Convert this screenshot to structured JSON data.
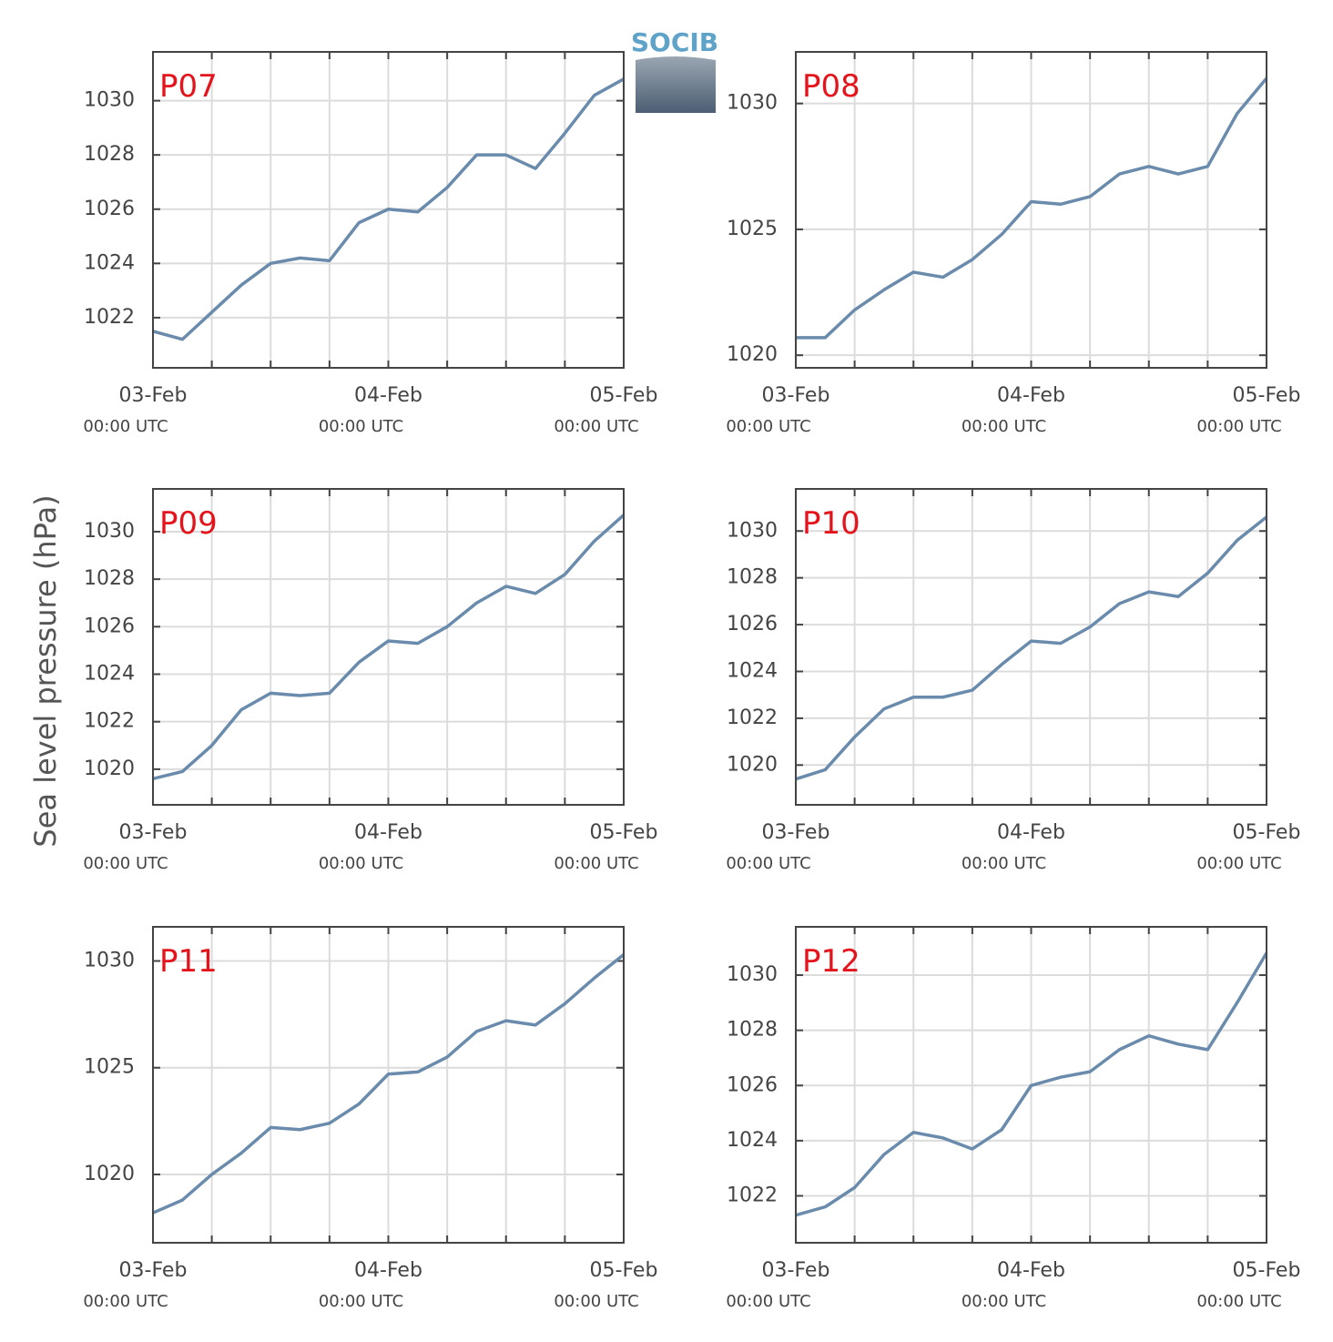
{
  "ylabel": "Sea level pressure (hPa)",
  "logo": "SOCIB",
  "chart_data": [
    {
      "type": "line",
      "title": "P07",
      "color": "#6a8bab",
      "grid": true,
      "x": [
        0,
        3,
        6,
        9,
        12,
        15,
        18,
        21,
        24,
        27,
        30,
        33,
        36,
        39,
        42,
        45,
        48
      ],
      "values": [
        1021.5,
        1021.2,
        1022.2,
        1023.2,
        1024.0,
        1024.2,
        1024.1,
        1025.5,
        1026.0,
        1025.9,
        1026.8,
        1028.0,
        1028.0,
        1027.5,
        1028.8,
        1030.2,
        1030.8
      ],
      "xlim": [
        0,
        48
      ],
      "xticks": [
        {
          "value": 0,
          "label": "03-Feb",
          "sublabel": "00:00 UTC"
        },
        {
          "value": 24,
          "label": "04-Feb",
          "sublabel": "00:00 UTC"
        },
        {
          "value": 48,
          "label": "05-Feb",
          "sublabel": "00:00 UTC"
        }
      ],
      "xminor": [
        6,
        12,
        18,
        30,
        36,
        42
      ],
      "ylim": [
        1020.15,
        1031.8
      ],
      "yticks": [
        1022,
        1024,
        1026,
        1028,
        1030
      ]
    },
    {
      "type": "line",
      "title": "P08",
      "color": "#6a8bab",
      "grid": true,
      "x": [
        0,
        3,
        6,
        9,
        12,
        15,
        18,
        21,
        24,
        27,
        30,
        33,
        36,
        39,
        42,
        45,
        48
      ],
      "values": [
        1020.7,
        1020.7,
        1021.8,
        1022.6,
        1023.3,
        1023.1,
        1023.8,
        1024.8,
        1026.1,
        1026.0,
        1026.3,
        1027.2,
        1027.5,
        1027.2,
        1027.5,
        1029.6,
        1031.0
      ],
      "xlim": [
        0,
        48
      ],
      "xticks": [
        {
          "value": 0,
          "label": "03-Feb",
          "sublabel": "00:00 UTC"
        },
        {
          "value": 24,
          "label": "04-Feb",
          "sublabel": "00:00 UTC"
        },
        {
          "value": 48,
          "label": "05-Feb",
          "sublabel": "00:00 UTC"
        }
      ],
      "xminor": [
        6,
        12,
        18,
        30,
        36,
        42
      ],
      "ylim": [
        1019.5,
        1032.05
      ],
      "yticks": [
        1020,
        1025,
        1030
      ]
    },
    {
      "type": "line",
      "title": "P09",
      "color": "#6a8bab",
      "grid": true,
      "x": [
        0,
        3,
        6,
        9,
        12,
        15,
        18,
        21,
        24,
        27,
        30,
        33,
        36,
        39,
        42,
        45,
        48
      ],
      "values": [
        1019.6,
        1019.9,
        1021.0,
        1022.5,
        1023.2,
        1023.1,
        1023.2,
        1024.5,
        1025.4,
        1025.3,
        1026.0,
        1027.0,
        1027.7,
        1027.4,
        1028.2,
        1029.6,
        1030.7
      ],
      "xlim": [
        0,
        48
      ],
      "xticks": [
        {
          "value": 0,
          "label": "03-Feb",
          "sublabel": "00:00 UTC"
        },
        {
          "value": 24,
          "label": "04-Feb",
          "sublabel": "00:00 UTC"
        },
        {
          "value": 48,
          "label": "05-Feb",
          "sublabel": "00:00 UTC"
        }
      ],
      "xminor": [
        6,
        12,
        18,
        30,
        36,
        42
      ],
      "ylim": [
        1018.5,
        1031.8
      ],
      "yticks": [
        1020,
        1022,
        1024,
        1026,
        1028,
        1030
      ]
    },
    {
      "type": "line",
      "title": "P10",
      "color": "#6a8bab",
      "grid": true,
      "x": [
        0,
        3,
        6,
        9,
        12,
        15,
        18,
        21,
        24,
        27,
        30,
        33,
        36,
        39,
        42,
        45,
        48
      ],
      "values": [
        1019.4,
        1019.8,
        1021.2,
        1022.4,
        1022.9,
        1022.9,
        1023.2,
        1024.3,
        1025.3,
        1025.2,
        1025.9,
        1026.9,
        1027.4,
        1027.2,
        1028.2,
        1029.6,
        1030.6
      ],
      "xlim": [
        0,
        48
      ],
      "xticks": [
        {
          "value": 0,
          "label": "03-Feb",
          "sublabel": "00:00 UTC"
        },
        {
          "value": 24,
          "label": "04-Feb",
          "sublabel": "00:00 UTC"
        },
        {
          "value": 48,
          "label": "05-Feb",
          "sublabel": "00:00 UTC"
        }
      ],
      "xminor": [
        6,
        12,
        18,
        30,
        36,
        42
      ],
      "ylim": [
        1018.3,
        1031.8
      ],
      "yticks": [
        1020,
        1022,
        1024,
        1026,
        1028,
        1030
      ]
    },
    {
      "type": "line",
      "title": "P11",
      "color": "#6a8bab",
      "grid": true,
      "x": [
        0,
        3,
        6,
        9,
        12,
        15,
        18,
        21,
        24,
        27,
        30,
        33,
        36,
        39,
        42,
        45,
        48
      ],
      "values": [
        1018.2,
        1018.8,
        1020.0,
        1021.0,
        1022.2,
        1022.1,
        1022.4,
        1023.3,
        1024.7,
        1024.8,
        1025.5,
        1026.7,
        1027.2,
        1027.0,
        1028.0,
        1029.2,
        1030.3
      ],
      "xlim": [
        0,
        48
      ],
      "xticks": [
        {
          "value": 0,
          "label": "03-Feb",
          "sublabel": "00:00 UTC"
        },
        {
          "value": 24,
          "label": "04-Feb",
          "sublabel": "00:00 UTC"
        },
        {
          "value": 48,
          "label": "05-Feb",
          "sublabel": "00:00 UTC"
        }
      ],
      "xminor": [
        6,
        12,
        18,
        30,
        36,
        42
      ],
      "ylim": [
        1016.8,
        1031.6
      ],
      "yticks": [
        1020,
        1025,
        1030
      ]
    },
    {
      "type": "line",
      "title": "P12",
      "color": "#6a8bab",
      "grid": true,
      "x": [
        0,
        3,
        6,
        9,
        12,
        15,
        18,
        21,
        24,
        27,
        30,
        33,
        36,
        39,
        42,
        45,
        48
      ],
      "values": [
        1021.3,
        1021.6,
        1022.3,
        1023.5,
        1024.3,
        1024.1,
        1023.7,
        1024.4,
        1026.0,
        1026.3,
        1026.5,
        1027.3,
        1027.8,
        1027.5,
        1027.3,
        1029.0,
        1030.8
      ],
      "xlim": [
        0,
        48
      ],
      "xticks": [
        {
          "value": 0,
          "label": "03-Feb",
          "sublabel": "00:00 UTC"
        },
        {
          "value": 24,
          "label": "04-Feb",
          "sublabel": "00:00 UTC"
        },
        {
          "value": 48,
          "label": "05-Feb",
          "sublabel": "00:00 UTC"
        }
      ],
      "xminor": [
        6,
        12,
        18,
        30,
        36,
        42
      ],
      "ylim": [
        1020.3,
        1031.75
      ],
      "yticks": [
        1022,
        1024,
        1026,
        1028,
        1030
      ]
    }
  ]
}
